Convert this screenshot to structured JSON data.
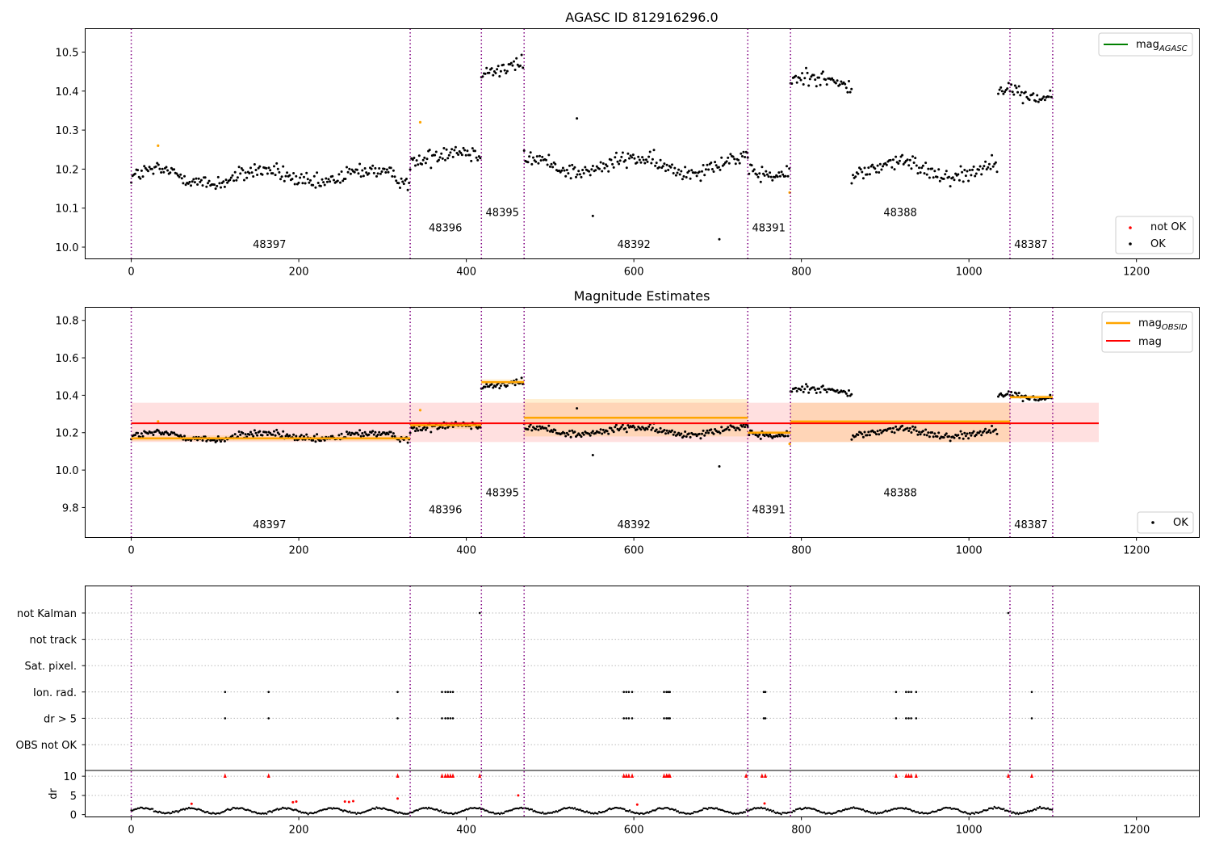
{
  "chart_data": [
    {
      "type": "scatter",
      "title": "AGASC ID 812916296.0",
      "xlim": [
        -55,
        1275
      ],
      "ylim": [
        9.97,
        10.56
      ],
      "xticks": [
        0,
        200,
        400,
        600,
        800,
        1000,
        1200
      ],
      "yticks": [
        10.0,
        10.1,
        10.2,
        10.3,
        10.4,
        10.5
      ],
      "ytick_labels": [
        "10.0",
        "10.1",
        "10.2",
        "10.3",
        "10.4",
        "10.5"
      ],
      "obs_boundaries": [
        0,
        333,
        418,
        469,
        736,
        787,
        1049,
        1100
      ],
      "obs_labels": [
        {
          "obsid": "48397",
          "x": 165,
          "y": 9.998
        },
        {
          "obsid": "48396",
          "x": 375,
          "y": 10.04
        },
        {
          "obsid": "48395",
          "x": 443,
          "y": 10.08
        },
        {
          "obsid": "48392",
          "x": 600,
          "y": 9.998
        },
        {
          "obsid": "48391",
          "x": 761,
          "y": 10.04
        },
        {
          "obsid": "48388",
          "x": 918,
          "y": 10.08
        },
        {
          "obsid": "48387",
          "x": 1074,
          "y": 9.998
        }
      ],
      "segments": [
        {
          "x0": 0,
          "x1": 333,
          "level": 10.18
        },
        {
          "x0": 333,
          "x1": 418,
          "level": 10.23
        },
        {
          "x0": 418,
          "x1": 469,
          "level": 10.47
        },
        {
          "x0": 469,
          "x1": 736,
          "level": 10.21
        },
        {
          "x0": 736,
          "x1": 787,
          "level": 10.2
        },
        {
          "x0": 787,
          "x1": 860,
          "level": 10.42
        },
        {
          "x0": 860,
          "x1": 1035,
          "level": 10.2
        },
        {
          "x0": 1035,
          "x1": 1100,
          "level": 10.4
        }
      ],
      "legend_top": {
        "label": "mag",
        "subscript": "AGASC",
        "color": "#008000",
        "loc": "upper right"
      },
      "legend_bottom": [
        {
          "label": "not OK",
          "color": "#ff0000"
        },
        {
          "label": "OK",
          "color": "#000000"
        }
      ]
    },
    {
      "type": "scatter",
      "title": "Magnitude Estimates",
      "xlim": [
        -55,
        1275
      ],
      "ylim": [
        9.64,
        10.87
      ],
      "xticks": [
        0,
        200,
        400,
        600,
        800,
        1000,
        1200
      ],
      "yticks": [
        9.8,
        10.0,
        10.2,
        10.4,
        10.6,
        10.8
      ],
      "ytick_labels": [
        "9.8",
        "10.0",
        "10.2",
        "10.4",
        "10.6",
        "10.8"
      ],
      "obs_labels": [
        {
          "obsid": "48397",
          "x": 165,
          "y": 9.69
        },
        {
          "obsid": "48396",
          "x": 375,
          "y": 9.77
        },
        {
          "obsid": "48395",
          "x": 443,
          "y": 9.86
        },
        {
          "obsid": "48392",
          "x": 600,
          "y": 9.69
        },
        {
          "obsid": "48391",
          "x": 761,
          "y": 9.77
        },
        {
          "obsid": "48388",
          "x": 918,
          "y": 9.86
        },
        {
          "obsid": "48387",
          "x": 1074,
          "y": 9.69
        }
      ],
      "mag": {
        "value": 10.25,
        "band": [
          10.15,
          10.36
        ],
        "x0": 0,
        "x1": 1155,
        "color": "#ff0000"
      },
      "mag_obsid": [
        {
          "x0": 0,
          "x1": 333,
          "value": 10.17,
          "band": [
            10.155,
            10.185
          ]
        },
        {
          "x0": 333,
          "x1": 418,
          "value": 10.24,
          "band": [
            10.22,
            10.26
          ]
        },
        {
          "x0": 418,
          "x1": 469,
          "value": 10.47,
          "band": [
            10.455,
            10.485
          ]
        },
        {
          "x0": 469,
          "x1": 736,
          "value": 10.28,
          "band": [
            10.18,
            10.38
          ]
        },
        {
          "x0": 736,
          "x1": 787,
          "value": 10.2,
          "band": [
            10.19,
            10.21
          ]
        },
        {
          "x0": 787,
          "x1": 1049,
          "value": 10.26,
          "band": [
            10.15,
            10.36
          ]
        },
        {
          "x0": 1049,
          "x1": 1100,
          "value": 10.39,
          "band": [
            10.38,
            10.4
          ]
        }
      ],
      "legend_top": [
        {
          "label": "mag",
          "subscript": "OBSID",
          "color": "#ffa500"
        },
        {
          "label": "mag",
          "subscript": "",
          "color": "#ff0000"
        }
      ],
      "legend_bottom": [
        {
          "label": "OK",
          "color": "#000000"
        }
      ]
    },
    {
      "type": "scatter",
      "title": "",
      "xlim": [
        -55,
        1275
      ],
      "xticks": [
        0,
        200,
        400,
        600,
        800,
        1000,
        1200
      ],
      "flag_rows": [
        "not Kalman",
        "not track",
        "Sat. pixel.",
        "Ion. rad.",
        "dr > 5",
        "OBS not OK"
      ],
      "flag_points": [
        {
          "row": "not Kalman",
          "x": [
            416,
            1047
          ]
        },
        {
          "row": "Ion. rad.",
          "x": [
            112,
            164,
            318,
            371,
            375,
            378,
            381,
            384,
            588,
            591,
            594,
            598,
            636,
            639,
            641,
            643,
            755,
            757,
            913,
            925,
            928,
            931,
            937,
            1075
          ]
        },
        {
          "row": "dr > 5",
          "x": [
            112,
            164,
            318,
            371,
            375,
            378,
            381,
            384,
            588,
            591,
            594,
            598,
            636,
            639,
            641,
            643,
            755,
            757,
            913,
            925,
            928,
            931,
            937,
            1075
          ]
        }
      ],
      "dr_ylim": [
        -0.6,
        11.5
      ],
      "dr_yticks": [
        0,
        5,
        10
      ],
      "dr_ylabel": "dr",
      "dr_high_x": [
        112,
        164,
        318,
        371,
        375,
        378,
        381,
        384,
        416,
        588,
        591,
        594,
        598,
        636,
        639,
        641,
        643,
        734,
        753,
        757,
        913,
        925,
        928,
        931,
        937,
        1047,
        1075
      ]
    }
  ]
}
